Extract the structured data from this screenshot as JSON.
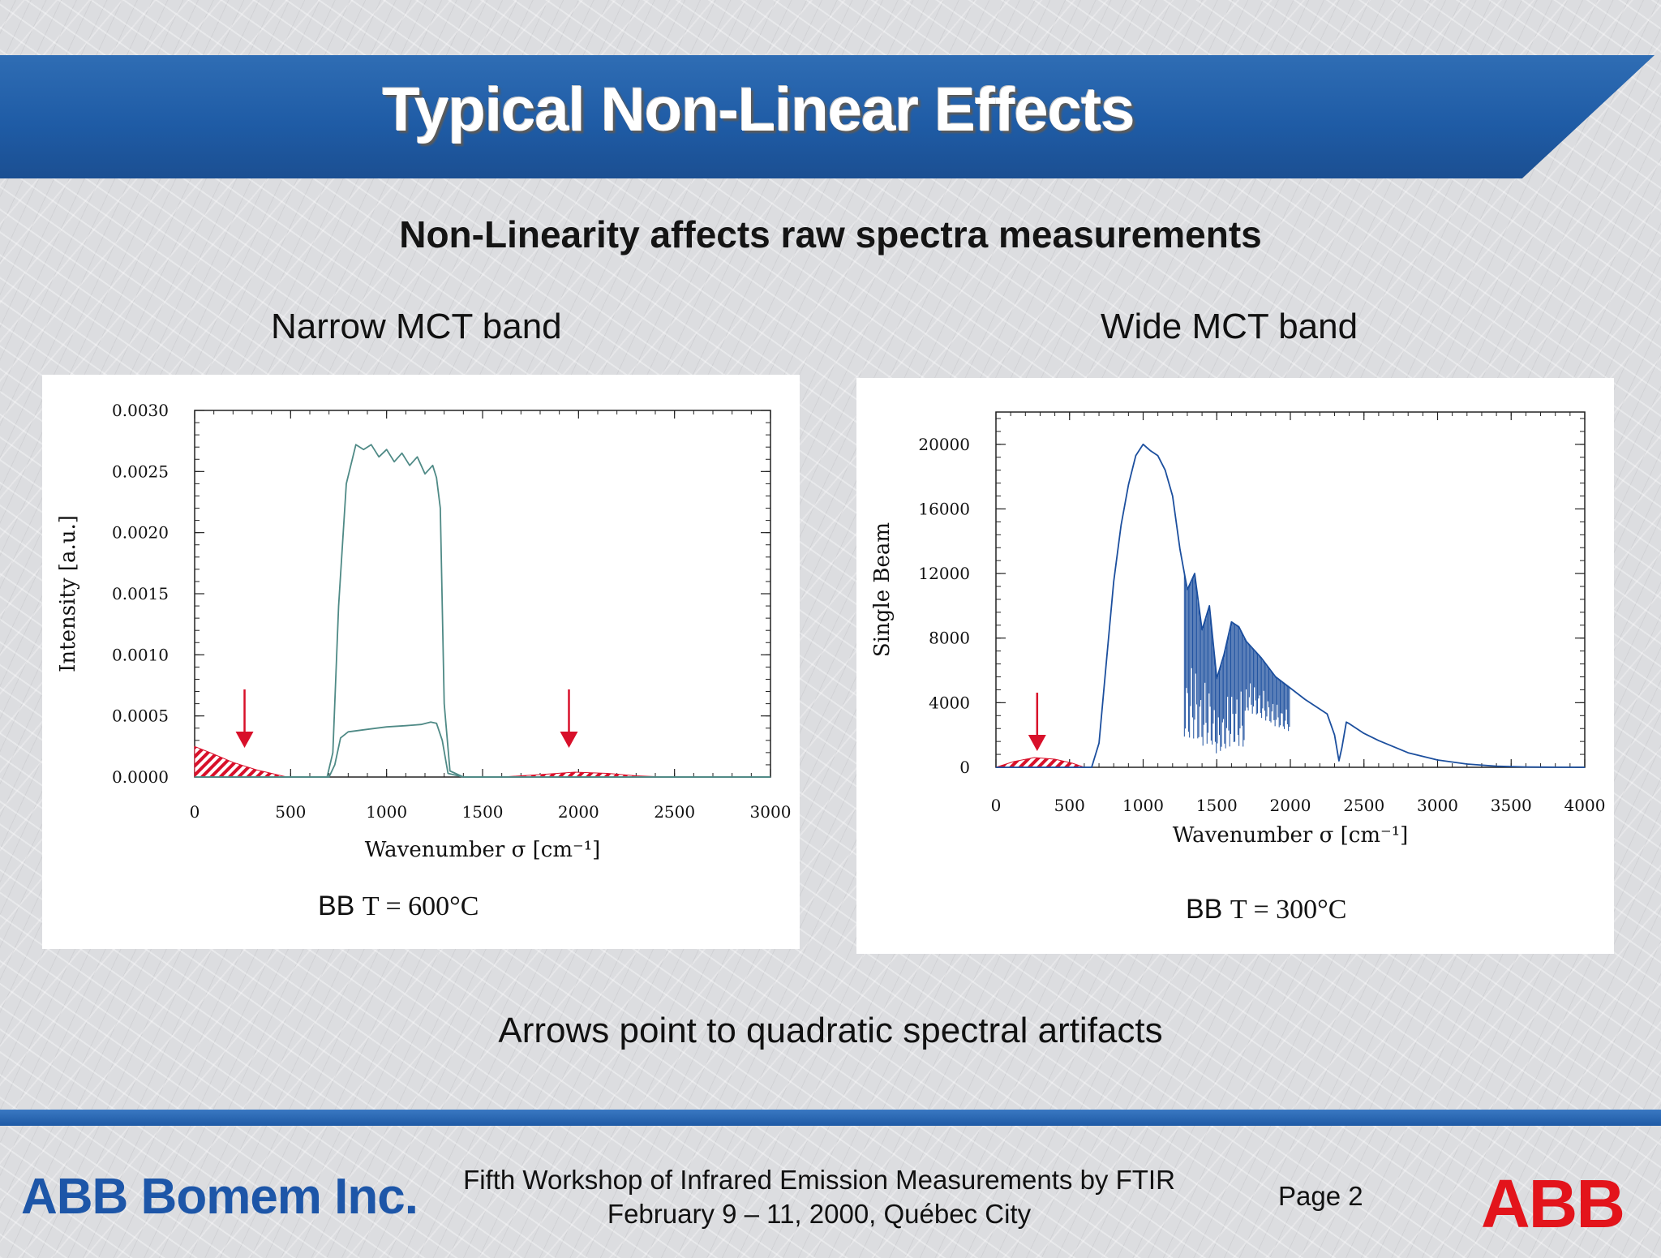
{
  "slide": {
    "title": "Typical Non-Linear Effects",
    "subtitle": "Non-Linearity affects raw spectra measurements",
    "note": "Arrows point to quadratic spectral artifacts"
  },
  "footer": {
    "company": "ABB Bomem Inc.",
    "line1": "Fifth Workshop of Infrared Emission Measurements by FTIR",
    "line2": "February 9 – 11, 2000, Québec City",
    "page": "Page 2",
    "logo": "ABB"
  },
  "colors": {
    "banner": "#1f5ca6",
    "spectrum_blue": "#1c4f9e",
    "spectrum_teal": "#4f8a86",
    "artifact_red": "#d8102a",
    "logo_red": "#e3141b"
  },
  "chart_data": [
    {
      "type": "line",
      "panel_label": "Narrow MCT band",
      "caption_prefix": "BB ",
      "caption_temp": "T = 600°C",
      "xlabel": "Wavenumber σ [cm⁻¹]",
      "ylabel": "Intensity [a.u.]",
      "xlim": [
        0,
        3000
      ],
      "ylim": [
        0,
        0.003
      ],
      "xticks": [
        "0",
        "500",
        "1000",
        "1500",
        "2000",
        "2500",
        "3000"
      ],
      "yticks": [
        "0.0000",
        "0.0005",
        "0.0010",
        "0.0015",
        "0.0020",
        "0.0025",
        "0.0030"
      ],
      "series": [
        {
          "color": "#4f8a86",
          "x": [
            0,
            600,
            690,
            720,
            750,
            790,
            840,
            880,
            920,
            960,
            1000,
            1040,
            1080,
            1120,
            1160,
            1200,
            1240,
            1260,
            1280,
            1300,
            1330,
            1400,
            3000
          ],
          "y": [
            0,
            0,
            0,
            0.0002,
            0.0014,
            0.0024,
            0.00272,
            0.00268,
            0.00272,
            0.00262,
            0.00268,
            0.00258,
            0.00265,
            0.00255,
            0.00262,
            0.00248,
            0.00255,
            0.00245,
            0.0022,
            0.0006,
            5e-05,
            0,
            0
          ]
        },
        {
          "color": "#4f8a86",
          "x": [
            0,
            700,
            730,
            760,
            800,
            900,
            1000,
            1100,
            1180,
            1230,
            1260,
            1290,
            1320,
            1400,
            3000
          ],
          "y": [
            0,
            0,
            0.0001,
            0.00032,
            0.00037,
            0.00039,
            0.00041,
            0.00042,
            0.00043,
            0.00045,
            0.00044,
            0.0003,
            3e-05,
            0,
            0
          ]
        }
      ],
      "artifacts": [
        {
          "x": [
            0,
            80,
            200,
            320,
            480
          ],
          "y": [
            0.00025,
            0.0002,
            0.00012,
            6e-05,
            0
          ]
        },
        {
          "x": [
            1600,
            1800,
            1980,
            2150,
            2300,
            2450
          ],
          "y": [
            0,
            2e-05,
            4e-05,
            3e-05,
            1e-05,
            0
          ]
        }
      ],
      "arrows_at": [
        260,
        1950
      ]
    },
    {
      "type": "line",
      "panel_label": "Wide MCT band",
      "caption_prefix": "BB ",
      "caption_temp": "T = 300°C",
      "xlabel": "Wavenumber σ [cm⁻¹]",
      "ylabel": "Single Beam",
      "xlim": [
        0,
        4000
      ],
      "ylim": [
        0,
        22000
      ],
      "xticks": [
        "0",
        "500",
        "1000",
        "1500",
        "2000",
        "2500",
        "3000",
        "3500",
        "4000"
      ],
      "yticks": [
        "0",
        "4000",
        "8000",
        "12000",
        "16000",
        "20000"
      ],
      "series": [
        {
          "color": "#1c4f9e",
          "x": [
            0,
            650,
            700,
            750,
            800,
            850,
            900,
            950,
            1000,
            1050,
            1100,
            1150,
            1200,
            1250,
            1300,
            1350,
            1400,
            1450,
            1500,
            1550,
            1600,
            1650,
            1700,
            1800,
            1900,
            2000,
            2100,
            2200,
            2250,
            2300,
            2330,
            2350,
            2380,
            2400,
            2450,
            2500,
            2600,
            2800,
            3000,
            3200,
            3400,
            3600,
            3800,
            4000
          ],
          "y": [
            0,
            0,
            1500,
            6500,
            11500,
            15000,
            17500,
            19300,
            20000,
            19600,
            19300,
            18400,
            16800,
            13500,
            11000,
            12000,
            8500,
            10000,
            5500,
            7000,
            9000,
            8700,
            7800,
            6800,
            5600,
            4900,
            4200,
            3600,
            3300,
            2000,
            400,
            1200,
            2800,
            2700,
            2400,
            2100,
            1650,
            900,
            450,
            200,
            70,
            20,
            5,
            0
          ]
        }
      ],
      "artifacts": [
        {
          "x": [
            0,
            120,
            260,
            400,
            520,
            600
          ],
          "y": [
            0,
            350,
            600,
            500,
            250,
            0
          ]
        }
      ],
      "arrows_at": [
        280
      ]
    }
  ]
}
